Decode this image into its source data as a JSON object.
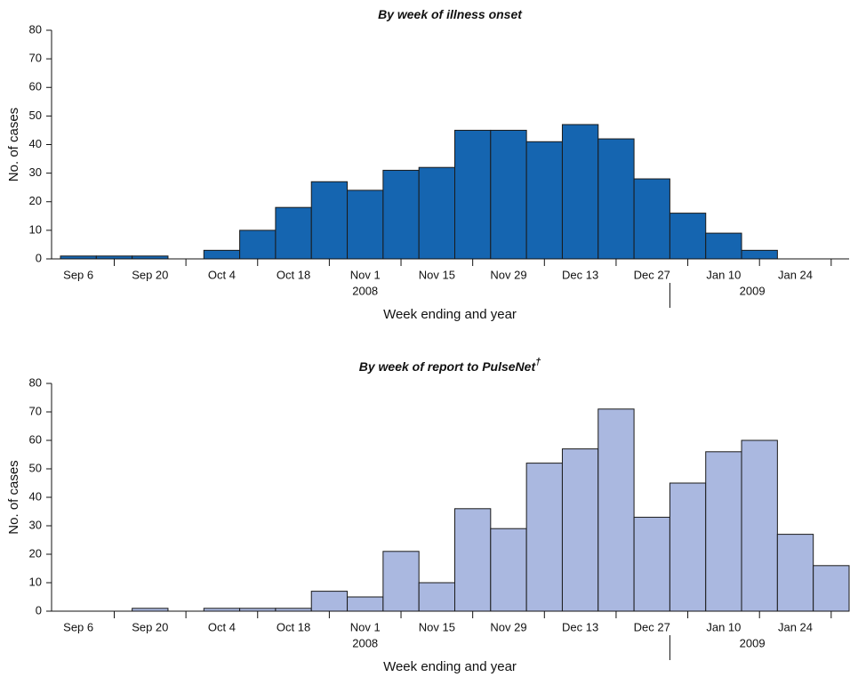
{
  "chart_data": [
    {
      "type": "bar",
      "title": "By week of illness onset",
      "y_label": "No. of cases",
      "x_label": "Week ending and year",
      "categories": [
        "Sep 6",
        null,
        "Sep 20",
        null,
        "Oct 4",
        null,
        "Oct 18",
        null,
        "Nov 1",
        null,
        "Nov 15",
        null,
        "Nov 29",
        null,
        "Dec 13",
        null,
        "Dec 27",
        null,
        "Jan 10",
        null,
        "Jan 24",
        null
      ],
      "years": [
        "2008",
        "2009"
      ],
      "values": [
        1,
        1,
        1,
        0,
        3,
        10,
        18,
        27,
        24,
        31,
        32,
        45,
        45,
        41,
        47,
        42,
        28,
        16,
        9,
        3,
        0,
        0
      ],
      "color": "#1565b0",
      "ylim": [
        0,
        80
      ],
      "yticks": [
        0,
        10,
        20,
        30,
        40,
        50,
        60,
        70,
        80
      ]
    },
    {
      "type": "bar",
      "title": "By week of report to PulseNet",
      "title_mark": "†",
      "y_label": "No. of cases",
      "x_label": "Week ending and year",
      "categories": [
        "Sep 6",
        null,
        "Sep 20",
        null,
        "Oct 4",
        null,
        "Oct 18",
        null,
        "Nov 1",
        null,
        "Nov 15",
        null,
        "Nov 29",
        null,
        "Dec 13",
        null,
        "Dec 27",
        null,
        "Jan 10",
        null,
        "Jan 24",
        null
      ],
      "years": [
        "2008",
        "2009"
      ],
      "values": [
        0,
        0,
        1,
        0,
        1,
        1,
        1,
        7,
        5,
        21,
        10,
        36,
        29,
        52,
        57,
        71,
        33,
        45,
        56,
        60,
        27,
        16
      ],
      "color": "#aab8e0",
      "ylim": [
        0,
        80
      ],
      "yticks": [
        0,
        10,
        20,
        30,
        40,
        50,
        60,
        70,
        80
      ]
    }
  ]
}
